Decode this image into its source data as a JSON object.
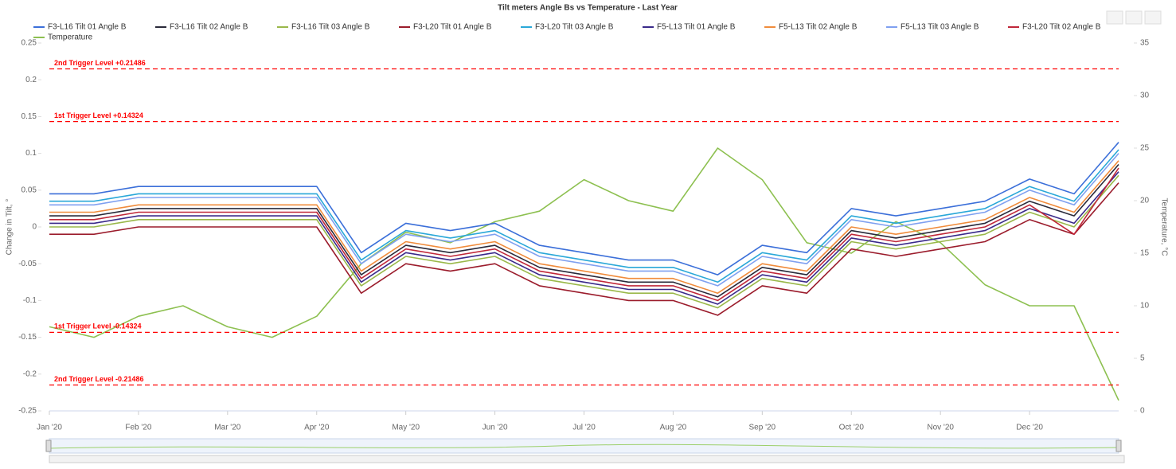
{
  "chart_data": {
    "type": "line",
    "title": "Tilt meters Angle Bs vs Temperature - Last Year",
    "y_label": "Change in Tilt, °",
    "y2_label": "Temperature, °C",
    "xlim": [
      0,
      12
    ],
    "xticks": [
      {
        "value": 0,
        "label": "Jan '20"
      },
      {
        "value": 1,
        "label": "Feb '20"
      },
      {
        "value": 2,
        "label": "Mar '20"
      },
      {
        "value": 3,
        "label": "Apr '20"
      },
      {
        "value": 4,
        "label": "May '20"
      },
      {
        "value": 5,
        "label": "Jun '20"
      },
      {
        "value": 6,
        "label": "Jul '20"
      },
      {
        "value": 7,
        "label": "Aug '20"
      },
      {
        "value": 8,
        "label": "Sep '20"
      },
      {
        "value": 9,
        "label": "Oct '20"
      },
      {
        "value": 10,
        "label": "Nov '20"
      },
      {
        "value": 11,
        "label": "Dec '20"
      }
    ],
    "ylim": [
      -0.25,
      0.25
    ],
    "yticks": [
      -0.25,
      -0.2,
      -0.15,
      -0.1,
      -0.05,
      0,
      0.05,
      0.1,
      0.15,
      0.2,
      0.25
    ],
    "y2lim": [
      0,
      35
    ],
    "y2ticks": [
      0,
      5,
      10,
      15,
      20,
      25,
      30,
      35
    ],
    "legend": "top",
    "x": [
      0,
      0.5,
      1,
      1.5,
      2,
      2.5,
      3,
      3.5,
      4,
      4.5,
      5,
      5.5,
      6,
      6.5,
      7,
      7.5,
      8,
      8.5,
      9,
      9.5,
      10,
      10.5,
      11,
      11.5,
      12
    ],
    "annotations": [
      {
        "text": "2nd Trigger Level +0.21486",
        "value": 0.21486,
        "color": "#ff0000"
      },
      {
        "text": "1st Trigger Level +0.14324",
        "value": 0.14324,
        "color": "#ff0000"
      },
      {
        "text": "1st Trigger Level -0.14324",
        "value": -0.14324,
        "color": "#ff0000"
      },
      {
        "text": "2nd Trigger Level -0.21486",
        "value": -0.21486,
        "color": "#ff0000"
      }
    ],
    "series": [
      {
        "name": "F3-L16 Tilt 01 Angle B",
        "color": "#3b6fd9",
        "values": [
          0.045,
          0.045,
          0.055,
          0.055,
          0.055,
          0.055,
          0.055,
          -0.035,
          0.005,
          -0.005,
          0.005,
          -0.025,
          -0.035,
          -0.045,
          -0.045,
          -0.065,
          -0.025,
          -0.035,
          0.025,
          0.015,
          0.025,
          0.035,
          0.065,
          0.045,
          0.115
        ]
      },
      {
        "name": "F3-L16 Tilt 02 Angle B",
        "color": "#2a2a3a",
        "values": [
          0.015,
          0.015,
          0.025,
          0.025,
          0.025,
          0.025,
          0.025,
          -0.065,
          -0.025,
          -0.035,
          -0.025,
          -0.055,
          -0.065,
          -0.075,
          -0.075,
          -0.095,
          -0.055,
          -0.065,
          -0.005,
          -0.015,
          -0.005,
          0.005,
          0.035,
          0.015,
          0.085
        ]
      },
      {
        "name": "F3-L16 Tilt 03 Angle B",
        "color": "#9ab84a",
        "values": [
          0,
          0,
          0.01,
          0.01,
          0.01,
          0.01,
          0.01,
          -0.08,
          -0.04,
          -0.05,
          -0.04,
          -0.07,
          -0.08,
          -0.09,
          -0.09,
          -0.11,
          -0.07,
          -0.08,
          -0.02,
          -0.03,
          -0.02,
          -0.01,
          0.02,
          0,
          0.07
        ]
      },
      {
        "name": "F3-L20 Tilt 01 Angle B",
        "color": "#9b1c2c",
        "values": [
          -0.01,
          -0.01,
          0,
          0,
          0,
          0,
          0,
          -0.09,
          -0.05,
          -0.06,
          -0.05,
          -0.08,
          -0.09,
          -0.1,
          -0.1,
          -0.12,
          -0.08,
          -0.09,
          -0.03,
          -0.04,
          -0.03,
          -0.02,
          0.01,
          -0.01,
          0.06
        ]
      },
      {
        "name": "F3-L20 Tilt 03 Angle B",
        "color": "#2aa8d8",
        "values": [
          0.035,
          0.035,
          0.045,
          0.045,
          0.045,
          0.045,
          0.045,
          -0.045,
          -0.005,
          -0.015,
          -0.005,
          -0.035,
          -0.045,
          -0.055,
          -0.055,
          -0.075,
          -0.035,
          -0.045,
          0.015,
          0.005,
          0.015,
          0.025,
          0.055,
          0.035,
          0.105
        ]
      },
      {
        "name": "F5-L13 Tilt 01 Angle B",
        "color": "#3a2a8a",
        "values": [
          0.005,
          0.005,
          0.015,
          0.015,
          0.015,
          0.015,
          0.015,
          -0.075,
          -0.035,
          -0.045,
          -0.035,
          -0.065,
          -0.075,
          -0.085,
          -0.085,
          -0.105,
          -0.065,
          -0.075,
          -0.015,
          -0.025,
          -0.015,
          -0.005,
          0.025,
          0.005,
          0.075
        ]
      },
      {
        "name": "F5-L13 Tilt 02 Angle B",
        "color": "#f08c3c",
        "values": [
          0.02,
          0.02,
          0.03,
          0.03,
          0.03,
          0.03,
          0.03,
          -0.06,
          -0.02,
          -0.03,
          -0.02,
          -0.05,
          -0.06,
          -0.07,
          -0.07,
          -0.09,
          -0.05,
          -0.06,
          0,
          -0.01,
          0,
          0.01,
          0.04,
          0.02,
          0.09
        ]
      },
      {
        "name": "F5-L13 Tilt 03 Angle B",
        "color": "#7fa0f0",
        "values": [
          0.03,
          0.03,
          0.04,
          0.04,
          0.04,
          0.04,
          0.04,
          -0.05,
          -0.01,
          -0.02,
          -0.01,
          -0.04,
          -0.05,
          -0.06,
          -0.06,
          -0.08,
          -0.04,
          -0.05,
          0.01,
          0,
          0.01,
          0.02,
          0.05,
          0.03,
          0.1
        ]
      },
      {
        "name": "F3-L20 Tilt 02 Angle B",
        "color": "#c0283a",
        "values": [
          0.01,
          0.01,
          0.02,
          0.02,
          0.02,
          0.02,
          0.02,
          -0.07,
          -0.03,
          -0.04,
          -0.03,
          -0.06,
          -0.07,
          -0.08,
          -0.08,
          -0.1,
          -0.06,
          -0.07,
          -0.01,
          -0.02,
          -0.01,
          0,
          0.03,
          -0.01,
          0.08
        ]
      },
      {
        "name": "Temperature",
        "color": "#8dc050",
        "axis": "y2",
        "values": [
          8,
          7,
          9,
          10,
          8,
          7,
          9,
          14,
          17,
          16,
          18,
          19,
          22,
          20,
          19,
          25,
          22,
          16,
          15,
          18,
          16,
          12,
          10,
          10,
          1
        ]
      }
    ]
  }
}
